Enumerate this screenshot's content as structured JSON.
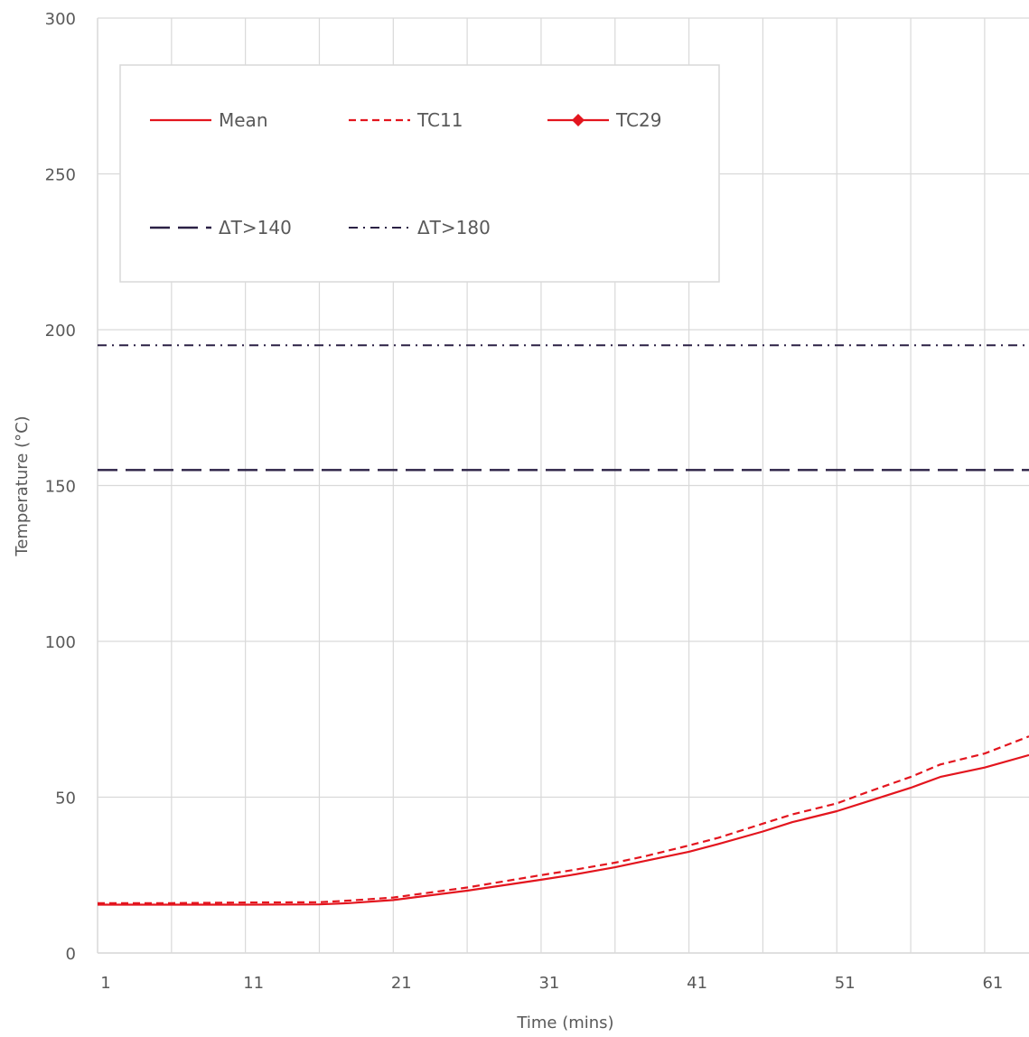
{
  "chart_data": {
    "type": "line",
    "xlabel": "Time (mins)",
    "ylabel": "Temperature (°C)",
    "xlim": [
      1,
      64
    ],
    "ylim": [
      0,
      300
    ],
    "x_ticks": [
      1,
      11,
      21,
      31,
      41,
      51,
      61
    ],
    "y_ticks": [
      0,
      50,
      100,
      150,
      200,
      250,
      300
    ],
    "grid": true,
    "legend_position": "top-left inside",
    "series": [
      {
        "name": "Mean",
        "style": "solid",
        "color": "#e3151e",
        "x": [
          1,
          6,
          11,
          16,
          18,
          21,
          26,
          31,
          33,
          36,
          38,
          41,
          43,
          46,
          48,
          51,
          53,
          56,
          58,
          61,
          64
        ],
        "y": [
          15.5,
          15.5,
          15.5,
          15.6,
          16,
          17,
          20,
          23.5,
          25,
          27.5,
          29.5,
          32.5,
          35,
          39,
          42,
          45.5,
          48.5,
          53,
          56.5,
          59.5,
          63.5
        ]
      },
      {
        "name": "TC11",
        "style": "dashed",
        "color": "#e3151e",
        "x": [
          1,
          6,
          11,
          16,
          18,
          21,
          26,
          31,
          33,
          36,
          38,
          41,
          43,
          46,
          48,
          51,
          53,
          56,
          58,
          61,
          64
        ],
        "y": [
          16,
          16,
          16.2,
          16.3,
          16.8,
          17.8,
          21,
          25,
          26.5,
          29,
          31,
          34.5,
          37,
          41.5,
          44.5,
          48,
          51.5,
          56.5,
          60.5,
          64,
          69.5
        ]
      },
      {
        "name": "TC29",
        "style": "solid-diamond",
        "color": "#e3151e",
        "x": [],
        "y": []
      },
      {
        "name": "ΔT>140",
        "style": "long-dash",
        "color": "#2b2145",
        "x": [
          1,
          64
        ],
        "y": [
          155,
          155
        ]
      },
      {
        "name": "ΔT>180",
        "style": "dash-dot",
        "color": "#2b2145",
        "x": [
          1,
          64
        ],
        "y": [
          195,
          195
        ]
      }
    ]
  }
}
